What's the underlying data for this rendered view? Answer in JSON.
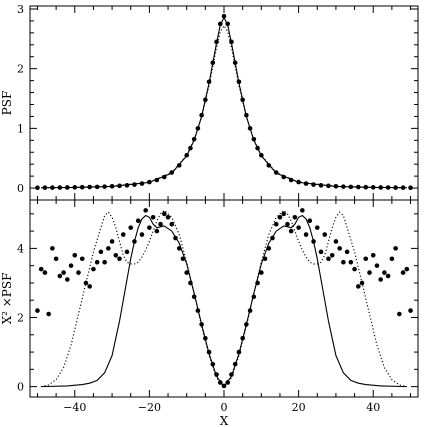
{
  "chart_data": [
    {
      "type": "scatter",
      "panel": "top",
      "xlabel": "",
      "ylabel": "PSF",
      "xlim": [
        -52,
        52
      ],
      "ylim": [
        -0.2,
        3.05
      ],
      "x_ticks": [
        -40,
        -20,
        0,
        20,
        40
      ],
      "x_tick_labels": [],
      "y_ticks": [
        0,
        1,
        2,
        3
      ],
      "y_tick_labels": [
        "0",
        "1",
        "2",
        "3"
      ],
      "grid": false,
      "series": [
        {
          "style": "points",
          "x": [
            -50,
            -48,
            -46,
            -44,
            -42,
            -40,
            -38,
            -36,
            -34,
            -32,
            -30,
            -28,
            -26,
            -24,
            -22,
            -20,
            -18,
            -16,
            -14,
            -12,
            -10,
            -9,
            -8,
            -7,
            -6,
            -5,
            -4,
            -3,
            -2,
            -1,
            0,
            1,
            2,
            3,
            4,
            5,
            6,
            7,
            8,
            9,
            10,
            12,
            14,
            16,
            18,
            20,
            22,
            24,
            26,
            28,
            30,
            32,
            34,
            36,
            38,
            40,
            42,
            44,
            46,
            48,
            50
          ],
          "y": [
            0.006,
            0.007,
            0.008,
            0.009,
            0.01,
            0.012,
            0.014,
            0.017,
            0.02,
            0.024,
            0.03,
            0.037,
            0.046,
            0.058,
            0.075,
            0.1,
            0.135,
            0.185,
            0.26,
            0.38,
            0.55,
            0.67,
            0.82,
            1.0,
            1.22,
            1.48,
            1.78,
            2.1,
            2.45,
            2.75,
            2.88,
            2.75,
            2.45,
            2.1,
            1.78,
            1.48,
            1.22,
            1.0,
            0.82,
            0.67,
            0.55,
            0.38,
            0.26,
            0.185,
            0.135,
            0.1,
            0.075,
            0.058,
            0.046,
            0.037,
            0.03,
            0.024,
            0.02,
            0.017,
            0.014,
            0.012,
            0.01,
            0.009,
            0.008,
            0.007,
            0.006
          ]
        },
        {
          "style": "solid",
          "x": [
            -49,
            -40,
            -30,
            -20,
            -14,
            -10,
            -8,
            -6,
            -4,
            -2,
            -1,
            0,
            1,
            2,
            4,
            6,
            8,
            10,
            14,
            20,
            30,
            40,
            49
          ],
          "y": [
            0.005,
            0.011,
            0.028,
            0.095,
            0.25,
            0.54,
            0.8,
            1.2,
            1.76,
            2.43,
            2.73,
            2.86,
            2.73,
            2.43,
            1.76,
            1.2,
            0.8,
            0.54,
            0.25,
            0.095,
            0.028,
            0.011,
            0.005
          ]
        },
        {
          "style": "dotted",
          "x": [
            -49,
            -40,
            -30,
            -20,
            -14,
            -10,
            -8,
            -6,
            -4,
            -2,
            -1,
            0,
            1,
            2,
            4,
            6,
            8,
            10,
            14,
            20,
            30,
            40,
            49
          ],
          "y": [
            0.005,
            0.011,
            0.03,
            0.1,
            0.26,
            0.55,
            0.81,
            1.19,
            1.72,
            2.35,
            2.62,
            2.72,
            2.62,
            2.35,
            1.72,
            1.19,
            0.81,
            0.55,
            0.26,
            0.1,
            0.03,
            0.011,
            0.005
          ]
        }
      ]
    },
    {
      "type": "scatter",
      "panel": "bottom",
      "xlabel": "X",
      "ylabel": "X² ×PSF",
      "xlim": [
        -52,
        52
      ],
      "ylim": [
        -0.3,
        5.4
      ],
      "x_ticks": [
        -40,
        -20,
        0,
        20,
        40
      ],
      "x_tick_labels": [
        "−40",
        "−20",
        "0",
        "20",
        "40"
      ],
      "y_ticks": [
        0,
        2,
        4
      ],
      "y_tick_labels": [
        "0",
        "2",
        "4"
      ],
      "grid": false,
      "series": [
        {
          "style": "points",
          "x": [
            -50,
            -49,
            -48,
            -47,
            -46,
            -45,
            -44,
            -43,
            -42,
            -41,
            -40,
            -39,
            -38,
            -37,
            -36,
            -35,
            -34,
            -33,
            -32,
            -31,
            -30,
            -29,
            -28,
            -27,
            -26,
            -25,
            -24,
            -23,
            -22,
            -21,
            -20,
            -19,
            -18,
            -17,
            -16,
            -15,
            -14,
            -13,
            -12,
            -11,
            -10,
            -9,
            -8,
            -7,
            -6,
            -5,
            -4,
            -3,
            -2,
            -1,
            0,
            1,
            2,
            3,
            4,
            5,
            6,
            7,
            8,
            9,
            10,
            11,
            12,
            13,
            14,
            15,
            16,
            17,
            18,
            19,
            20,
            21,
            22,
            23,
            24,
            25,
            26,
            27,
            28,
            29,
            30,
            31,
            32,
            33,
            34,
            35,
            36,
            37,
            38,
            39,
            40,
            41,
            42,
            43,
            44,
            45,
            46,
            47,
            48,
            49,
            50
          ],
          "y": [
            2.2,
            3.4,
            3.3,
            2.1,
            4.0,
            3.7,
            3.2,
            3.3,
            3.1,
            3.5,
            3.8,
            3.3,
            3.7,
            3.0,
            2.9,
            3.4,
            3.6,
            3.9,
            3.6,
            4.0,
            4.2,
            3.8,
            3.7,
            4.4,
            3.9,
            4.6,
            4.2,
            4.8,
            4.4,
            5.1,
            4.6,
            4.9,
            4.5,
            4.7,
            5.0,
            4.9,
            4.7,
            4.3,
            4.0,
            3.7,
            3.3,
            3.0,
            2.6,
            2.2,
            1.8,
            1.4,
            1.0,
            0.65,
            0.35,
            0.12,
            0.02,
            0.12,
            0.35,
            0.65,
            1.0,
            1.4,
            1.8,
            2.2,
            2.6,
            3.0,
            3.3,
            3.7,
            4.0,
            4.3,
            4.7,
            4.9,
            5.0,
            4.7,
            4.5,
            4.9,
            4.6,
            5.1,
            4.4,
            4.8,
            4.2,
            4.6,
            3.9,
            4.4,
            3.7,
            3.8,
            4.2,
            4.0,
            3.6,
            3.9,
            3.6,
            3.4,
            2.9,
            3.0,
            3.7,
            3.3,
            3.8,
            3.5,
            3.1,
            3.3,
            3.2,
            3.7,
            4.0,
            2.1,
            3.3,
            3.4,
            2.2
          ]
        },
        {
          "style": "solid",
          "x": [
            -49,
            -42,
            -38,
            -36,
            -34,
            -32,
            -30,
            -28,
            -26,
            -25,
            -24,
            -23,
            -22,
            -21,
            -20,
            -19,
            -18,
            -16,
            -14,
            -12,
            -10,
            -8,
            -6,
            -4,
            -2,
            0,
            2,
            4,
            6,
            8,
            10,
            12,
            14,
            16,
            18,
            19,
            20,
            21,
            22,
            23,
            24,
            25,
            26,
            28,
            30,
            32,
            34,
            36,
            38,
            42,
            49
          ],
          "y": [
            0.0,
            0.02,
            0.06,
            0.1,
            0.18,
            0.4,
            0.9,
            1.9,
            3.1,
            3.7,
            4.2,
            4.6,
            4.85,
            4.95,
            4.9,
            4.7,
            4.6,
            4.65,
            4.5,
            4.15,
            3.55,
            2.7,
            1.8,
            0.95,
            0.3,
            0.0,
            0.3,
            0.95,
            1.8,
            2.7,
            3.55,
            4.15,
            4.5,
            4.65,
            4.6,
            4.7,
            4.9,
            4.95,
            4.85,
            4.6,
            4.2,
            3.7,
            3.1,
            1.9,
            0.9,
            0.4,
            0.18,
            0.1,
            0.06,
            0.02,
            0.0
          ]
        },
        {
          "style": "dotted",
          "x": [
            -49,
            -47,
            -45,
            -43,
            -41,
            -39,
            -37,
            -35,
            -33,
            -32,
            -31,
            -30,
            -29,
            -28,
            -27,
            -26,
            -25,
            -24,
            -23,
            -22,
            -21,
            -20,
            -19,
            -18,
            -17,
            -16,
            -14,
            -12,
            -10,
            -8,
            -6,
            -4,
            -2,
            0,
            2,
            4,
            6,
            8,
            10,
            12,
            14,
            16,
            17,
            18,
            19,
            20,
            21,
            22,
            23,
            24,
            25,
            26,
            27,
            28,
            29,
            30,
            31,
            32,
            33,
            35,
            37,
            39,
            41,
            43,
            45,
            47,
            49
          ],
          "y": [
            0.0,
            0.05,
            0.2,
            0.55,
            1.2,
            2.1,
            3.0,
            3.9,
            4.6,
            4.95,
            5.05,
            4.9,
            4.6,
            4.2,
            3.8,
            3.6,
            3.55,
            3.55,
            3.6,
            3.75,
            3.95,
            4.2,
            4.5,
            4.8,
            5.0,
            5.1,
            4.9,
            4.4,
            3.6,
            2.7,
            1.75,
            0.9,
            0.25,
            0.0,
            0.25,
            0.9,
            1.75,
            2.7,
            3.6,
            4.4,
            4.9,
            5.1,
            5.0,
            4.8,
            4.5,
            4.2,
            3.95,
            3.75,
            3.6,
            3.55,
            3.55,
            3.6,
            3.8,
            4.2,
            4.6,
            4.9,
            5.05,
            4.95,
            4.6,
            3.9,
            3.0,
            2.1,
            1.2,
            0.55,
            0.2,
            0.05,
            0.0
          ]
        }
      ]
    }
  ]
}
